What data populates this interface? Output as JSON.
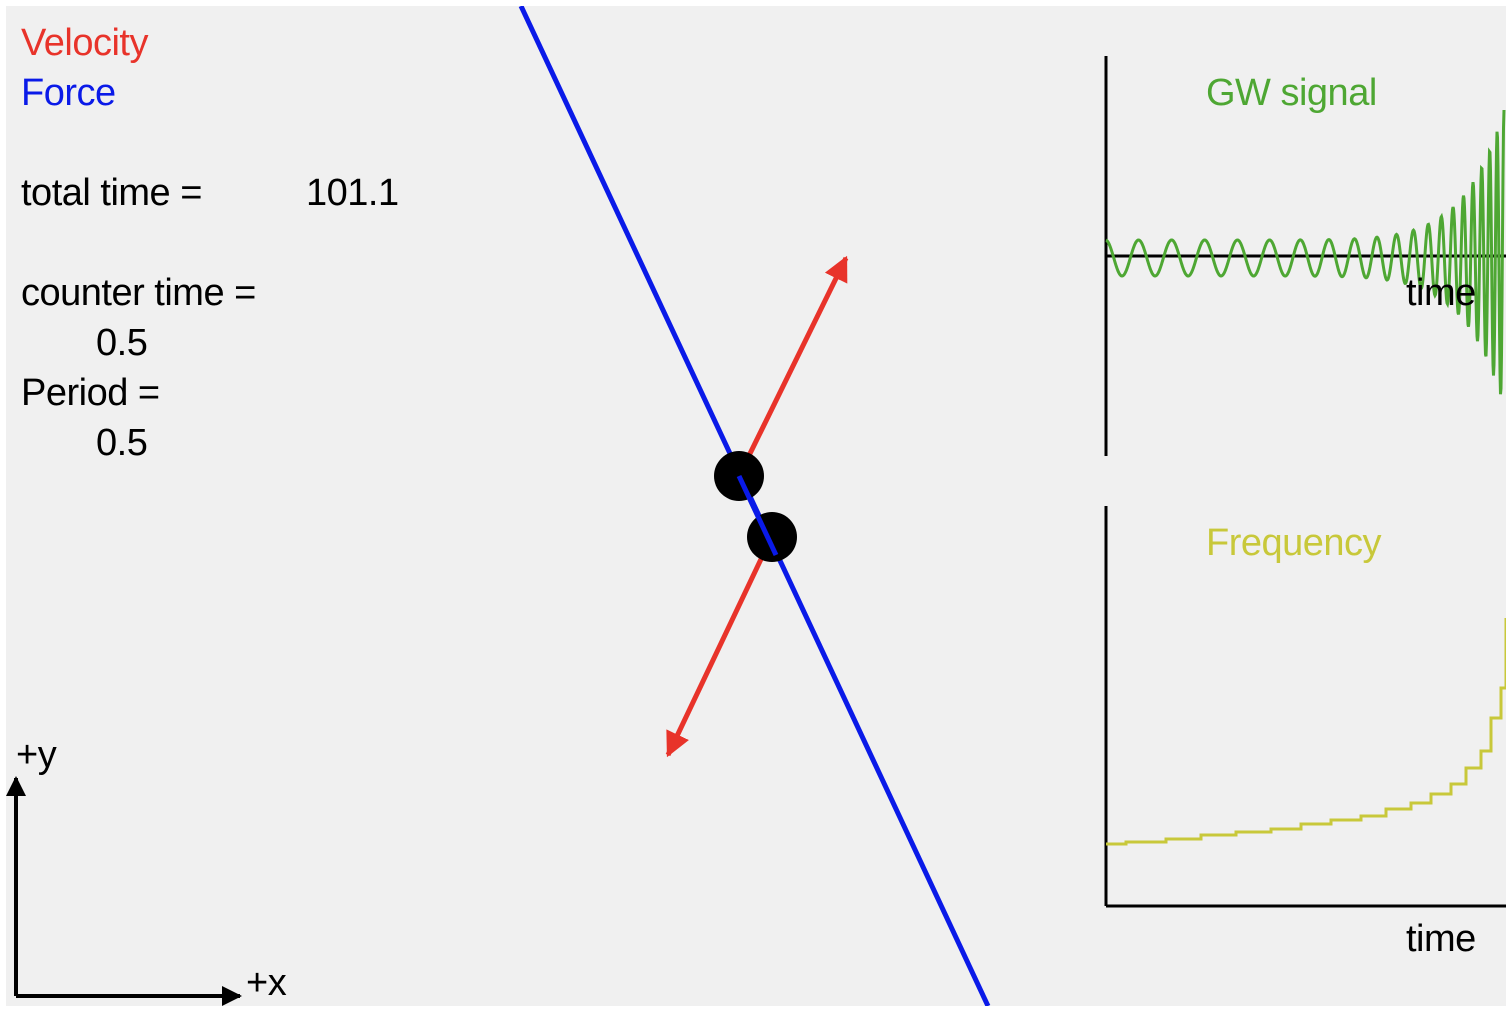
{
  "legend": {
    "velocity_label": "Velocity",
    "force_label": "Force",
    "velocity_color": "#e8332a",
    "force_color": "#0a1ae8"
  },
  "readouts": {
    "total_time_label": "total time =",
    "total_time_value": "101.1",
    "counter_time_label": "counter time =",
    "counter_time_value": "0.5",
    "period_label": "Period =",
    "period_value": "0.5"
  },
  "axes": {
    "y_label": "+y",
    "x_label": "+x"
  },
  "gw_plot": {
    "title": "GW signal",
    "xlabel": "time",
    "color": "#4ea733"
  },
  "frequency_plot": {
    "title": "Frequency",
    "xlabel": "time",
    "color": "#c8c83a"
  }
}
